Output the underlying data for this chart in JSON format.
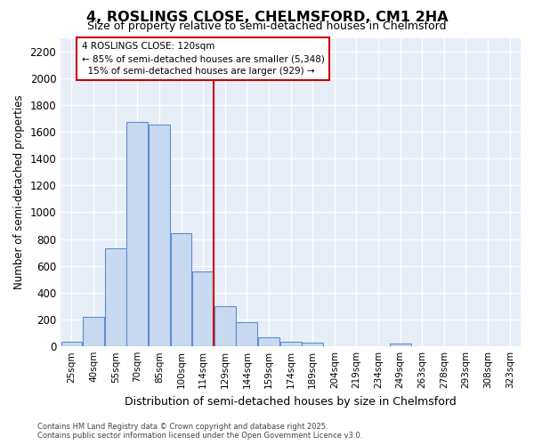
{
  "title": "4, ROSLINGS CLOSE, CHELMSFORD, CM1 2HA",
  "subtitle": "Size of property relative to semi-detached houses in Chelmsford",
  "xlabel": "Distribution of semi-detached houses by size in Chelmsford",
  "ylabel": "Number of semi-detached properties",
  "categories": [
    "25sqm",
    "40sqm",
    "55sqm",
    "70sqm",
    "85sqm",
    "100sqm",
    "114sqm",
    "129sqm",
    "144sqm",
    "159sqm",
    "174sqm",
    "189sqm",
    "204sqm",
    "219sqm",
    "234sqm",
    "249sqm",
    "263sqm",
    "278sqm",
    "293sqm",
    "308sqm",
    "323sqm"
  ],
  "values": [
    35,
    220,
    730,
    1670,
    1650,
    845,
    560,
    300,
    180,
    70,
    35,
    25,
    0,
    0,
    0,
    20,
    0,
    0,
    0,
    0,
    0
  ],
  "bar_color": "#c8d9f0",
  "bar_edge_color": "#5b8fd4",
  "vline_x": 7.0,
  "vline_color": "#cc0000",
  "annotation_title": "4 ROSLINGS CLOSE: 120sqm",
  "annotation_line1": "← 85% of semi-detached houses are smaller (5,348)",
  "annotation_line2": "  15% of semi-detached houses are larger (929) →",
  "annotation_box_color": "#ffffff",
  "annotation_box_edge": "#cc0000",
  "ylim": [
    0,
    2300
  ],
  "yticks": [
    0,
    200,
    400,
    600,
    800,
    1000,
    1200,
    1400,
    1600,
    1800,
    2000,
    2200
  ],
  "bg_color": "#ffffff",
  "plot_bg_color": "#e8eef8",
  "grid_color": "#ffffff",
  "footer_line1": "Contains HM Land Registry data © Crown copyright and database right 2025.",
  "footer_line2": "Contains public sector information licensed under the Open Government Licence v3.0."
}
